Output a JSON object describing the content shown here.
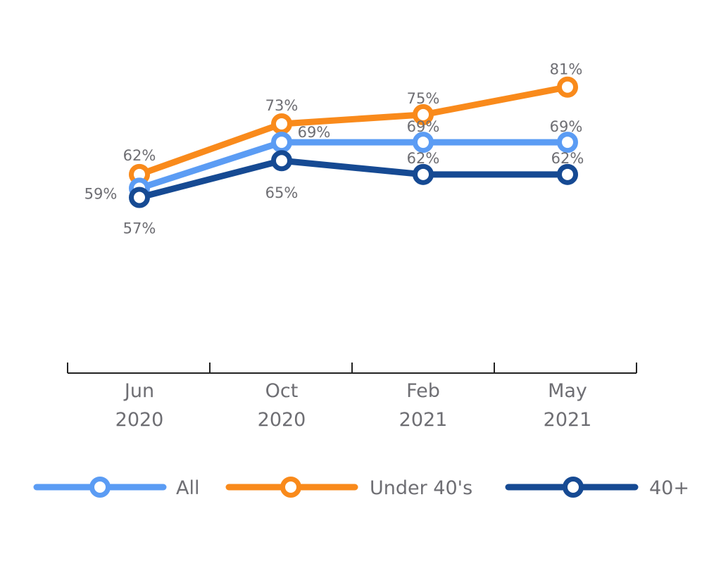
{
  "chart_data": {
    "type": "line",
    "categories": [
      {
        "line1": "Jun",
        "line2": "2020"
      },
      {
        "line1": "Oct",
        "line2": "2020"
      },
      {
        "line1": "Feb",
        "line2": "2021"
      },
      {
        "line1": "May",
        "line2": "2021"
      }
    ],
    "y_unit": "%",
    "ylim": [
      50,
      85
    ],
    "grid": false,
    "legend_position": "bottom",
    "series": [
      {
        "key": "all",
        "name": "All",
        "color": "#5b9cf4",
        "values": [
          59,
          69,
          69,
          69
        ],
        "labels": [
          "59%",
          "69%",
          "69%",
          "69%"
        ]
      },
      {
        "key": "under40",
        "name": "Under 40's",
        "color": "#f98a1b",
        "values": [
          62,
          73,
          75,
          81
        ],
        "labels": [
          "62%",
          "73%",
          "75%",
          "81%"
        ]
      },
      {
        "key": "over40",
        "name": "40+",
        "color": "#164a93",
        "values": [
          57,
          65,
          62,
          62
        ],
        "labels": [
          "57%",
          "65%",
          "62%",
          "62%"
        ]
      }
    ]
  }
}
